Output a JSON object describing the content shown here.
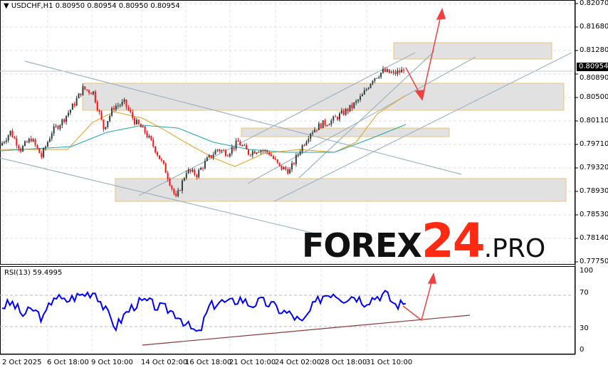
{
  "header": {
    "title": "▼ USDCHF,H1  0.80950 0.80954 0.80950 0.80954"
  },
  "price_axis": {
    "ticks": [
      "0.82070",
      "0.81680",
      "0.81280",
      "0.80890",
      "0.80500",
      "0.80110",
      "0.79710",
      "0.79320",
      "0.78930",
      "0.78530",
      "0.78140",
      "0.77750"
    ],
    "current_price": "0.80954"
  },
  "time_axis": {
    "ticks": [
      "2 Oct 2025",
      "6 Oct 18:00",
      "9 Oct 10:00",
      "14 Oct 02:00",
      "16 Oct 18:00",
      "21 Oct 10:00",
      "24 Oct 02:00",
      "28 Oct 18:00",
      "31 Oct 10:00"
    ]
  },
  "rsi": {
    "title": "RSI(13) 59.4995",
    "levels": [
      "100",
      "70",
      "30",
      "0"
    ]
  },
  "logo": {
    "part1": "FOREX",
    "part2": "24",
    "part3": ".PRO"
  },
  "colors": {
    "bull": "#2f3f3f",
    "bear": "#ff1010",
    "ma_fast": "#e0a020",
    "ma_slow": "#20a8a0",
    "rsi": "#0000ff",
    "zone": "#e0e0e0",
    "zone_border": "#f0c070",
    "arrow": "#f04040"
  },
  "chart_data": {
    "type": "candlestick",
    "symbol": "USDCHF",
    "timeframe": "H1",
    "ylim": [
      0.7775,
      0.8207
    ],
    "closes": [
      0.797,
      0.7993,
      0.7964,
      0.7982,
      0.7952,
      0.7993,
      0.8011,
      0.8035,
      0.8065,
      0.8059,
      0.7999,
      0.8035,
      0.8041,
      0.8011,
      0.7993,
      0.7964,
      0.7928,
      0.7881,
      0.7928,
      0.7922,
      0.7946,
      0.7964,
      0.7958,
      0.7976,
      0.7958,
      0.7964,
      0.7958,
      0.7934,
      0.7928,
      0.7964,
      0.7993,
      0.8005,
      0.8011,
      0.8023,
      0.8035,
      0.8053,
      0.8082,
      0.8094,
      0.809,
      0.80954
    ],
    "rsi_values": [
      56,
      60,
      45,
      52,
      40,
      70,
      62,
      68,
      72,
      75,
      50,
      30,
      48,
      60,
      62,
      55,
      52,
      45,
      30,
      20,
      55,
      62,
      60,
      66,
      58,
      62,
      58,
      50,
      45,
      34,
      55,
      70,
      74,
      66,
      70,
      62,
      68,
      72,
      58,
      59.5
    ]
  }
}
